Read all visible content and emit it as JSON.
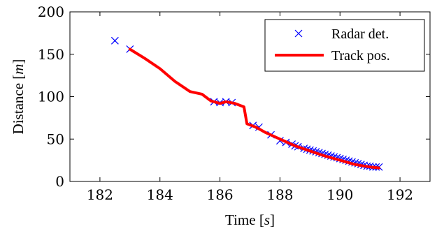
{
  "chart_data": {
    "type": "scatter",
    "xlabel": "Time [s]",
    "ylabel": "Distance [m]",
    "xlim": [
      181,
      193
    ],
    "ylim": [
      0,
      200
    ],
    "xticks": [
      182,
      184,
      186,
      188,
      190,
      192
    ],
    "yticks": [
      0,
      50,
      100,
      150,
      200
    ],
    "grid": false,
    "legend_position": "top-right",
    "series": [
      {
        "name": "Radar det.",
        "kind": "markers",
        "marker": "x",
        "color": "#0000ff",
        "points": [
          [
            182.5,
            166
          ],
          [
            183.0,
            156
          ],
          [
            185.8,
            94
          ],
          [
            186.0,
            93
          ],
          [
            186.2,
            94
          ],
          [
            186.4,
            93
          ],
          [
            187.1,
            66
          ],
          [
            187.3,
            64
          ],
          [
            187.7,
            55
          ],
          [
            188.0,
            48
          ],
          [
            188.2,
            46
          ],
          [
            188.4,
            44
          ],
          [
            188.5,
            42
          ],
          [
            188.6,
            41
          ],
          [
            188.8,
            39
          ],
          [
            188.9,
            38
          ],
          [
            189.0,
            37
          ],
          [
            189.1,
            36
          ],
          [
            189.2,
            35
          ],
          [
            189.3,
            34
          ],
          [
            189.4,
            33
          ],
          [
            189.5,
            32
          ],
          [
            189.6,
            31
          ],
          [
            189.7,
            30
          ],
          [
            189.8,
            29
          ],
          [
            189.9,
            28
          ],
          [
            190.0,
            27
          ],
          [
            190.1,
            26
          ],
          [
            190.2,
            25
          ],
          [
            190.3,
            24
          ],
          [
            190.4,
            23
          ],
          [
            190.5,
            22
          ],
          [
            190.6,
            21
          ],
          [
            190.7,
            20
          ],
          [
            190.8,
            19
          ],
          [
            190.9,
            18
          ],
          [
            191.0,
            18
          ],
          [
            191.1,
            17
          ],
          [
            191.2,
            17
          ],
          [
            191.3,
            17
          ]
        ]
      },
      {
        "name": "Track pos.",
        "kind": "line",
        "color": "#ff0000",
        "points": [
          [
            183.0,
            156
          ],
          [
            183.5,
            145
          ],
          [
            184.0,
            133
          ],
          [
            184.5,
            118
          ],
          [
            185.0,
            106
          ],
          [
            185.4,
            103
          ],
          [
            185.7,
            95
          ],
          [
            186.0,
            92
          ],
          [
            186.2,
            94
          ],
          [
            186.5,
            92
          ],
          [
            186.8,
            88
          ],
          [
            186.9,
            68
          ],
          [
            187.2,
            64
          ],
          [
            187.5,
            58
          ],
          [
            188.0,
            50
          ],
          [
            188.5,
            42
          ],
          [
            189.0,
            36
          ],
          [
            189.5,
            30
          ],
          [
            190.0,
            25
          ],
          [
            190.5,
            20
          ],
          [
            191.0,
            17
          ],
          [
            191.3,
            16
          ]
        ]
      }
    ]
  }
}
